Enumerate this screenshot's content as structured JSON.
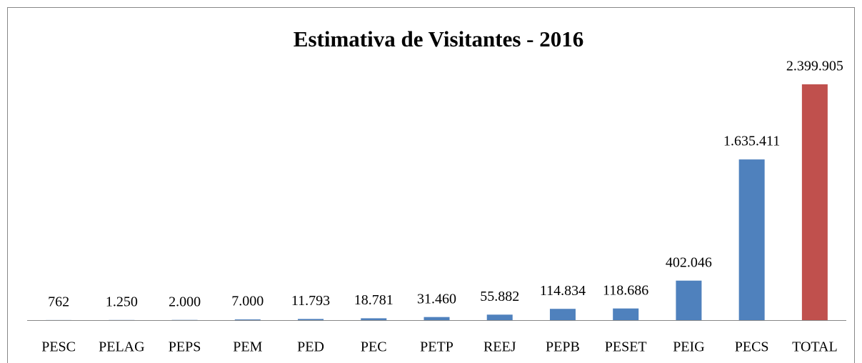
{
  "chart_data": {
    "type": "bar",
    "title": "Estimativa de Visitantes - 2016",
    "categories": [
      "PESC",
      "PELAG",
      "PEPS",
      "PEM",
      "PED",
      "PEC",
      "PETP",
      "REEJ",
      "PEPB",
      "PESET",
      "PEIG",
      "PECS",
      "TOTAL"
    ],
    "values": [
      762,
      1250,
      2000,
      7000,
      11793,
      18781,
      31460,
      55882,
      114834,
      118686,
      402046,
      1635411,
      2399905
    ],
    "value_labels": [
      "762",
      "1.250",
      "2.000",
      "7.000",
      "11.793",
      "18.781",
      "31.460",
      "55.882",
      "114.834",
      "118.686",
      "402.046",
      "1.635.411",
      "2.399.905"
    ],
    "colors": [
      "#4f81bd",
      "#4f81bd",
      "#4f81bd",
      "#4f81bd",
      "#4f81bd",
      "#4f81bd",
      "#4f81bd",
      "#4f81bd",
      "#4f81bd",
      "#4f81bd",
      "#4f81bd",
      "#4f81bd",
      "#c0504d"
    ]
  }
}
